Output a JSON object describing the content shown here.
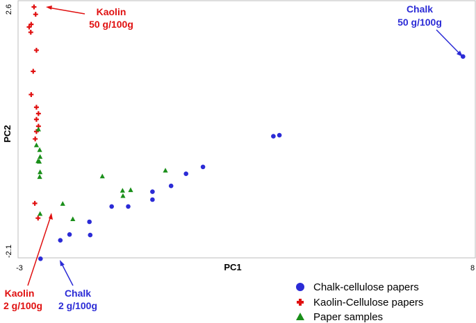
{
  "chart_data": {
    "type": "scatter",
    "xlabel": "PC1",
    "ylabel": "PC2",
    "xlim": [
      -3,
      8
    ],
    "ylim": [
      -2.1,
      2.6
    ],
    "x_tick_labels": [
      "-3",
      "8"
    ],
    "y_tick_labels": [
      "2.6",
      "-2.1"
    ],
    "grid": false,
    "legend_position": "bottom-right",
    "series": [
      {
        "name": "Chalk-cellulose papers",
        "color": "#2b2bd6",
        "marker": "circle",
        "points": [
          [
            -2.48,
            -2.17
          ],
          [
            -1.99,
            -1.82
          ],
          [
            -1.76,
            -1.71
          ],
          [
            -1.25,
            -1.72
          ],
          [
            -1.27,
            -1.47
          ],
          [
            -0.72,
            -1.18
          ],
          [
            -0.31,
            -1.18
          ],
          [
            0.29,
            -1.05
          ],
          [
            0.29,
            -0.9
          ],
          [
            0.75,
            -0.79
          ],
          [
            1.12,
            -0.56
          ],
          [
            1.54,
            -0.43
          ],
          [
            3.28,
            0.15
          ],
          [
            3.43,
            0.17
          ],
          [
            7.97,
            1.66
          ]
        ]
      },
      {
        "name": "Kaolin-Cellulose papers",
        "color": "#e01010",
        "marker": "plus",
        "points": [
          [
            -2.64,
            2.6
          ],
          [
            -2.6,
            2.46
          ],
          [
            -2.71,
            2.27
          ],
          [
            -2.76,
            2.22
          ],
          [
            -2.72,
            2.12
          ],
          [
            -2.58,
            1.78
          ],
          [
            -2.66,
            1.38
          ],
          [
            -2.71,
            0.94
          ],
          [
            -2.58,
            0.7
          ],
          [
            -2.53,
            0.58
          ],
          [
            -2.58,
            0.47
          ],
          [
            -2.53,
            0.34
          ],
          [
            -2.58,
            0.24
          ],
          [
            -2.61,
            0.1
          ],
          [
            -2.62,
            -1.12
          ],
          [
            -2.54,
            -1.4
          ]
        ]
      },
      {
        "name": "Paper samples",
        "color": "#1a8f1a",
        "marker": "triangle",
        "points": [
          [
            -2.49,
            -0.24
          ],
          [
            -2.5,
            -0.11
          ],
          [
            -2.58,
            -0.02
          ],
          [
            -2.54,
            -0.32
          ],
          [
            -2.51,
            -0.33
          ],
          [
            -2.49,
            -0.53
          ],
          [
            -2.5,
            -0.62
          ],
          [
            -2.49,
            -1.32
          ],
          [
            -1.93,
            -1.13
          ],
          [
            -1.68,
            -1.42
          ],
          [
            -0.95,
            -0.61
          ],
          [
            -0.45,
            -0.88
          ],
          [
            -0.44,
            -0.98
          ],
          [
            -0.25,
            -0.87
          ],
          [
            0.61,
            -0.5
          ],
          [
            -2.53,
            0.28
          ]
        ]
      }
    ],
    "annotations": [
      {
        "lines": [
          "Kaolin",
          "50 g/100g"
        ],
        "color": "#e01010"
      },
      {
        "lines": [
          "Chalk",
          "50 g/100g"
        ],
        "color": "#2b2bd6"
      },
      {
        "lines": [
          "Kaolin",
          "2 g/100g"
        ],
        "color": "#e01010"
      },
      {
        "lines": [
          "Chalk",
          "2 g/100g"
        ],
        "color": "#2b2bd6"
      }
    ]
  }
}
